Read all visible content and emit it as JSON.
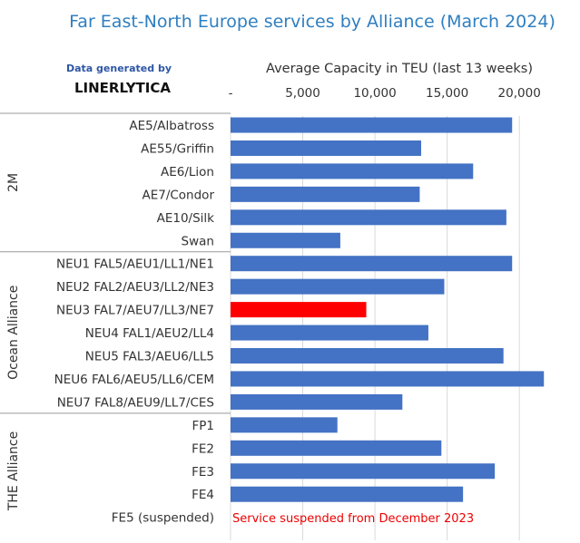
{
  "chart_data": {
    "type": "bar",
    "orientation": "horizontal",
    "title": "Far East-North Europe services by Alliance (March 2024)",
    "xlabel": "Average Capacity in TEU (last 13 weeks)",
    "x_ticks": [
      "-",
      "5,000",
      "10,000",
      "15,000",
      "20,000"
    ],
    "x_tick_values": [
      0,
      5000,
      10000,
      15000,
      20000
    ],
    "xlim": [
      0,
      22000
    ],
    "axis_position": "top",
    "grid": true,
    "colors": {
      "bar": "#4472c4",
      "highlight": "#ff0000",
      "note": "#ee0000",
      "title": "#2f7fc1"
    },
    "source_line1": "Data generated by",
    "source_line2": "LINERLYTICA",
    "groups": [
      {
        "name": "2M",
        "categories": [
          "AE5/Albatross",
          "AE55/Griffin",
          "AE6/Lion",
          "AE7/Condor",
          "AE10/Silk",
          "Swan"
        ],
        "values": [
          19500,
          13200,
          16800,
          13100,
          19100,
          7600
        ]
      },
      {
        "name": "Ocean Alliance",
        "categories": [
          "NEU1 FAL5/AEU1/LL1/NE1",
          "NEU2 FAL2/AEU3/LL2/NE3",
          "NEU3 FAL7/AEU7/LL3/NE7",
          "NEU4 FAL1/AEU2/LL4",
          "NEU5 FAL3/AEU6/LL5",
          "NEU6 FAL6/AEU5/LL6/CEM",
          "NEU7 FAL8/AEU9/LL7/CES"
        ],
        "values": [
          19500,
          14800,
          9400,
          13700,
          18900,
          21700,
          11900
        ],
        "highlight_index": 2
      },
      {
        "name": "THE Alliance",
        "categories": [
          "FP1",
          "FE2",
          "FE3",
          "FE4",
          "FE5 (suspended)"
        ],
        "values": [
          7400,
          14600,
          18300,
          16100,
          null
        ]
      }
    ],
    "annotation": "Service suspended from December 2023"
  }
}
